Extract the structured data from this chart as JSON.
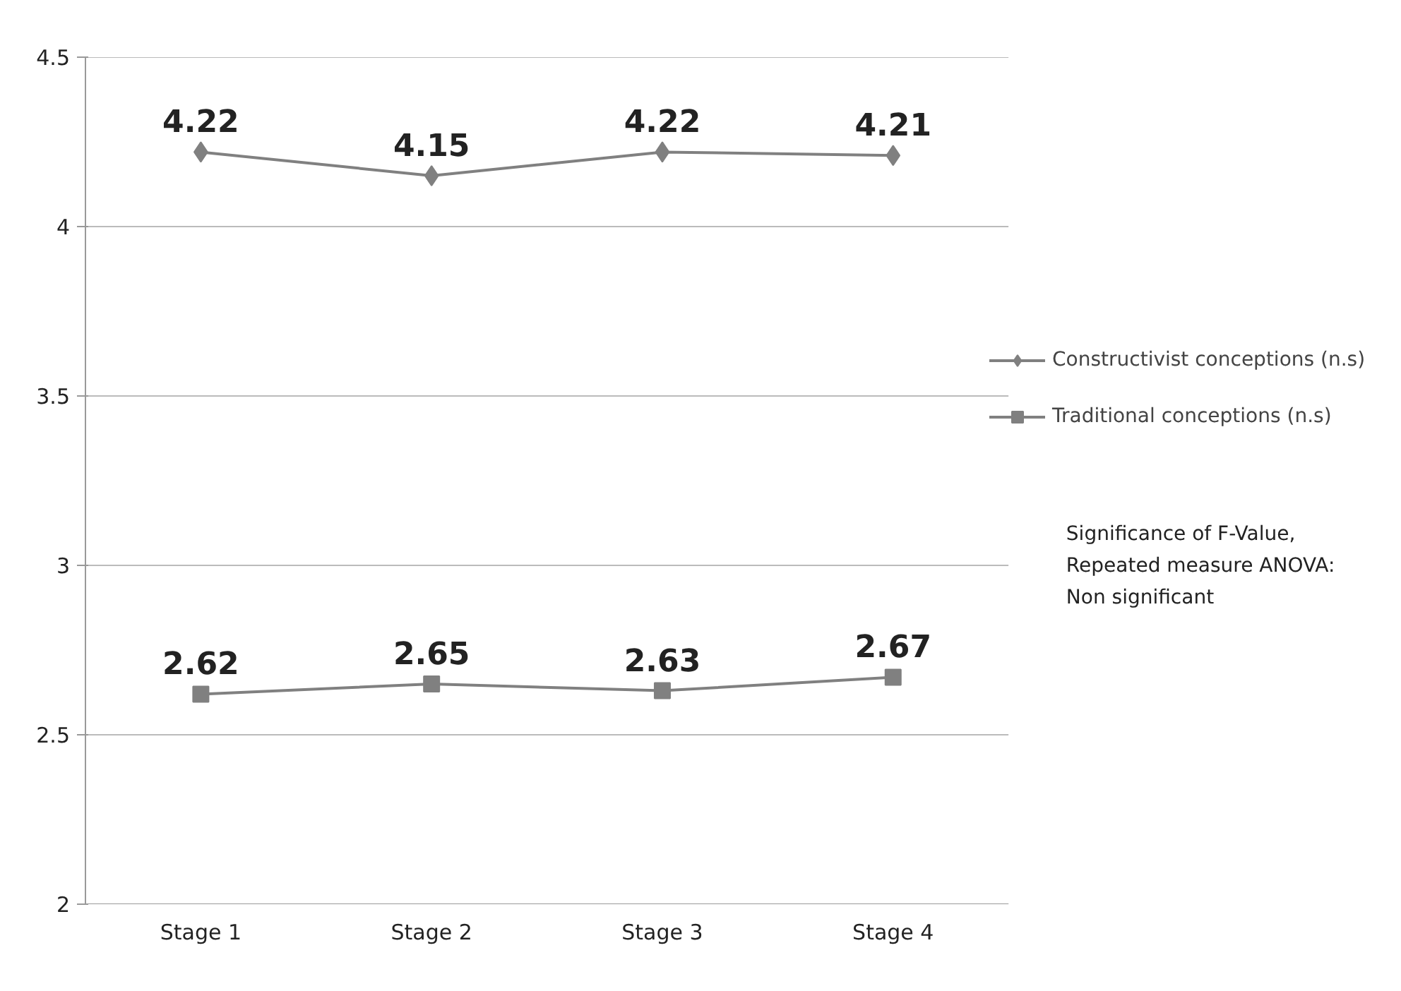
{
  "chart_data": {
    "type": "line",
    "categories": [
      "Stage 1",
      "Stage 2",
      "Stage 3",
      "Stage 4"
    ],
    "series": [
      {
        "name": "Constructivist conceptions (n.s)",
        "color": "#808080",
        "marker": "diamond",
        "values": [
          4.22,
          4.15,
          4.22,
          4.21
        ]
      },
      {
        "name": "Traditional conceptions (n.s)",
        "color": "#808080",
        "marker": "square",
        "values": [
          2.62,
          2.65,
          2.63,
          2.67
        ]
      }
    ],
    "ylim": [
      2,
      4.5
    ],
    "yticks": [
      2,
      {
        "value": 2.5,
        "label": "2.5"
      },
      3,
      {
        "value": 3.5,
        "label": "3.5"
      },
      4,
      {
        "value": 4.5,
        "label": "4.5"
      }
    ],
    "grid": "y",
    "legend": "right",
    "data_labels": true,
    "line_style": "solid",
    "annotations": [
      "Significance of F-Value,\nRepeated measure ANOVA:\nNon significant"
    ]
  }
}
